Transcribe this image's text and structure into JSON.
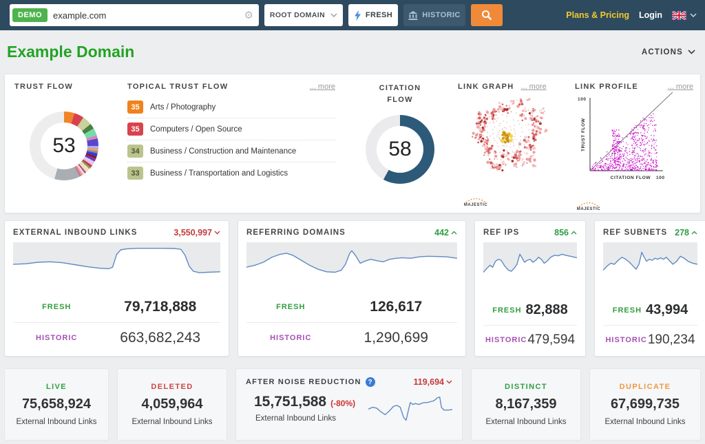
{
  "topbar": {
    "demo_badge": "DEMO",
    "search_value": "example.com",
    "scope_select": "ROOT DOMAIN",
    "fresh_button": "FRESH",
    "historic_button": "HISTORIC",
    "plans_pricing": "Plans & Pricing",
    "login": "Login"
  },
  "header": {
    "title": "Example Domain",
    "actions_label": "ACTIONS"
  },
  "overview": {
    "trust_flow": {
      "label": "TRUST FLOW",
      "value": "53"
    },
    "topical": {
      "label": "TOPICAL TRUST FLOW",
      "more_label": "... more",
      "items": [
        {
          "score": "35",
          "topic": "Arts / Photography",
          "color": "#f0821e",
          "text_color": "#ffffff"
        },
        {
          "score": "35",
          "topic": "Computers / Open Source",
          "color": "#d9434c",
          "text_color": "#ffffff"
        },
        {
          "score": "34",
          "topic": "Business / Construction and Maintenance",
          "color": "#bcc48e",
          "text_color": "#4f5430"
        },
        {
          "score": "33",
          "topic": "Business / Transportation and Logistics",
          "color": "#bcc48e",
          "text_color": "#4f5430"
        }
      ]
    },
    "citation_flow": {
      "label": "CITATION FLOW",
      "value": "58"
    },
    "link_graph": {
      "label": "LINK GRAPH",
      "more_label": "... more",
      "watermark": "MAJESTIC"
    },
    "link_profile": {
      "label": "LINK PROFILE",
      "more_label": "... more",
      "watermark": "MAJESTIC",
      "y_axis": "TRUST FLOW",
      "x_axis": "CITATION FLOW",
      "y_max": "100",
      "x_max": "100"
    }
  },
  "stat_cards": {
    "external_links": {
      "title": "EXTERNAL INBOUND LINKS",
      "delta": "3,550,997",
      "delta_dir": "down",
      "fresh_label": "FRESH",
      "fresh_value": "79,718,888",
      "historic_label": "HISTORIC",
      "historic_value": "663,682,243"
    },
    "referring_domains": {
      "title": "REFERRING DOMAINS",
      "delta": "442",
      "delta_dir": "up",
      "fresh_label": "FRESH",
      "fresh_value": "126,617",
      "historic_label": "HISTORIC",
      "historic_value": "1,290,699"
    },
    "ref_ips": {
      "title": "REF IPS",
      "delta": "856",
      "delta_dir": "up",
      "fresh_label": "FRESH",
      "fresh_value": "82,888",
      "historic_label": "HISTORIC",
      "historic_value": "479,594"
    },
    "ref_subnets": {
      "title": "REF SUBNETS",
      "delta": "278",
      "delta_dir": "up",
      "fresh_label": "FRESH",
      "fresh_value": "43,994",
      "historic_label": "HISTORIC",
      "historic_value": "190,234"
    }
  },
  "bottom_cards": {
    "live": {
      "label": "LIVE",
      "value": "75,658,924",
      "sub": "External Inbound Links"
    },
    "deleted": {
      "label": "DELETED",
      "value": "4,059,964",
      "sub": "External Inbound Links"
    },
    "noise": {
      "label": "AFTER NOISE REDUCTION",
      "delta": "119,694",
      "delta_dir": "down",
      "value": "15,751,588",
      "pct": "(-80%)",
      "sub": "External Inbound Links"
    },
    "distinct": {
      "label": "DISTINCT",
      "value": "8,167,359",
      "sub": "External Inbound Links"
    },
    "duplicate": {
      "label": "DUPLICATE",
      "value": "67,699,735",
      "sub": "External Inbound Links"
    }
  },
  "colors": {
    "topbar_bg": "#2e4a5f",
    "accent_orange": "#f08a38",
    "brand_green": "#23a323",
    "fresh_green": "#2f9e3f",
    "historic_purple": "#a64fb3",
    "delta_red": "#c43b3b",
    "delta_green": "#2e9e44",
    "citation_blue": "#2d5a78",
    "scatter_magenta": "#cc00cc",
    "spark_blue": "#6189c4",
    "spark_bg": "#e8eaec"
  },
  "chart_data": {
    "trust_flow_donut": {
      "type": "pie",
      "title": "Trust Flow",
      "value": 53,
      "segments": [
        [
          "#f08428",
          5
        ],
        [
          "#d84050",
          4.5
        ],
        [
          "#c8d29a",
          4.5
        ],
        [
          "#4e7e42",
          2.5
        ],
        [
          "#74dca8",
          3.5
        ],
        [
          "#e080b8",
          1.5
        ],
        [
          "#5848cc",
          3.5
        ],
        [
          "#b4aaf0",
          1.5
        ],
        [
          "#f0a050",
          1
        ],
        [
          "#909090",
          1
        ],
        [
          "#3838e8",
          1.5
        ],
        [
          "#8c1c1c",
          1
        ],
        [
          "#7838b0",
          1.5
        ],
        [
          "#d4d2f8",
          1
        ],
        [
          "#f2bcd8",
          1.2
        ],
        [
          "#c23468",
          1
        ],
        [
          "#8ea04a",
          1
        ],
        [
          "#ece8b4",
          1
        ],
        [
          "#f8d2d2",
          1.2
        ],
        [
          "#a05868",
          0.8
        ],
        [
          "#e8e8f0",
          0.8
        ],
        [
          "#f0a0a0",
          1
        ],
        [
          "#c87890",
          1
        ],
        [
          "#a9aeb3",
          12
        ],
        [
          "#ededee",
          45.5
        ]
      ]
    },
    "citation_flow_donut": {
      "type": "pie",
      "title": "Citation Flow",
      "value": 58,
      "segments": [
        [
          "#2d5a78",
          58
        ],
        [
          "#ebebed",
          42
        ]
      ]
    },
    "external_links_trend": {
      "type": "line",
      "x_range": [
        0,
        100
      ],
      "y_range": [
        0,
        40
      ],
      "points": [
        [
          0,
          22
        ],
        [
          6,
          21.5
        ],
        [
          12,
          20
        ],
        [
          18,
          19.5
        ],
        [
          24,
          20.5
        ],
        [
          30,
          22.5
        ],
        [
          36,
          24.5
        ],
        [
          42,
          26
        ],
        [
          46,
          26.5
        ],
        [
          48,
          25
        ],
        [
          50,
          12
        ],
        [
          52,
          7.5
        ],
        [
          55,
          6.5
        ],
        [
          60,
          6
        ],
        [
          66,
          6
        ],
        [
          72,
          6
        ],
        [
          78,
          6.2
        ],
        [
          81,
          7
        ],
        [
          83,
          13
        ],
        [
          85,
          24
        ],
        [
          87,
          29
        ],
        [
          90,
          30.5
        ],
        [
          94,
          30
        ],
        [
          100,
          29.5
        ]
      ]
    },
    "referring_domains_trend": {
      "type": "line",
      "x_range": [
        0,
        100
      ],
      "y_range": [
        0,
        40
      ],
      "points": [
        [
          0,
          25
        ],
        [
          4,
          23
        ],
        [
          8,
          20
        ],
        [
          12,
          15
        ],
        [
          16,
          12
        ],
        [
          19,
          11
        ],
        [
          22,
          13
        ],
        [
          26,
          18
        ],
        [
          30,
          23
        ],
        [
          34,
          27
        ],
        [
          38,
          29.5
        ],
        [
          42,
          30
        ],
        [
          45,
          28
        ],
        [
          47,
          22
        ],
        [
          49,
          11
        ],
        [
          50,
          8.5
        ],
        [
          52,
          14
        ],
        [
          54,
          21
        ],
        [
          56,
          19
        ],
        [
          59,
          17
        ],
        [
          62,
          18.5
        ],
        [
          65,
          19.5
        ],
        [
          68,
          17
        ],
        [
          71,
          16
        ],
        [
          74,
          15.5
        ],
        [
          78,
          16
        ],
        [
          82,
          14.5
        ],
        [
          86,
          14
        ],
        [
          90,
          14.2
        ],
        [
          95,
          14.5
        ],
        [
          100,
          16
        ]
      ]
    },
    "ref_ips_trend": {
      "type": "line",
      "x_range": [
        0,
        100
      ],
      "y_range": [
        0,
        40
      ],
      "points": [
        [
          0,
          30
        ],
        [
          4,
          26
        ],
        [
          7,
          23
        ],
        [
          10,
          25
        ],
        [
          13,
          19
        ],
        [
          16,
          17
        ],
        [
          19,
          18
        ],
        [
          23,
          24
        ],
        [
          27,
          28
        ],
        [
          30,
          29
        ],
        [
          33,
          26
        ],
        [
          36,
          22
        ],
        [
          39,
          12
        ],
        [
          41,
          15
        ],
        [
          44,
          20
        ],
        [
          47,
          18
        ],
        [
          50,
          17
        ],
        [
          53,
          20
        ],
        [
          56,
          18
        ],
        [
          59,
          15
        ],
        [
          62,
          17
        ],
        [
          65,
          21
        ],
        [
          68,
          19
        ],
        [
          72,
          15
        ],
        [
          76,
          13
        ],
        [
          80,
          13.5
        ],
        [
          84,
          12
        ],
        [
          88,
          13
        ],
        [
          93,
          14
        ],
        [
          100,
          15.5
        ]
      ]
    },
    "ref_subnets_trend": {
      "type": "line",
      "x_range": [
        0,
        100
      ],
      "y_range": [
        0,
        40
      ],
      "points": [
        [
          0,
          28
        ],
        [
          4,
          24
        ],
        [
          8,
          21
        ],
        [
          12,
          22
        ],
        [
          16,
          18
        ],
        [
          20,
          15
        ],
        [
          24,
          17
        ],
        [
          28,
          20
        ],
        [
          32,
          24
        ],
        [
          35,
          27
        ],
        [
          38,
          22
        ],
        [
          41,
          10
        ],
        [
          43,
          14
        ],
        [
          46,
          19
        ],
        [
          49,
          17
        ],
        [
          52,
          18
        ],
        [
          55,
          16
        ],
        [
          58,
          17
        ],
        [
          61,
          15.5
        ],
        [
          64,
          17
        ],
        [
          67,
          15
        ],
        [
          70,
          18
        ],
        [
          74,
          22
        ],
        [
          78,
          19
        ],
        [
          82,
          14
        ],
        [
          86,
          16
        ],
        [
          90,
          19
        ],
        [
          95,
          21
        ],
        [
          100,
          22
        ]
      ]
    },
    "noise_reduction_trend": {
      "type": "line",
      "x_range": [
        0,
        100
      ],
      "y_range": [
        0,
        40
      ],
      "points": [
        [
          0,
          18
        ],
        [
          5,
          16
        ],
        [
          10,
          17
        ],
        [
          15,
          21
        ],
        [
          20,
          24
        ],
        [
          25,
          20
        ],
        [
          30,
          15
        ],
        [
          34,
          14
        ],
        [
          38,
          16
        ],
        [
          42,
          27
        ],
        [
          45,
          30
        ],
        [
          48,
          18
        ],
        [
          50,
          11
        ],
        [
          53,
          13
        ],
        [
          56,
          12
        ],
        [
          60,
          13
        ],
        [
          63,
          12
        ],
        [
          66,
          11
        ],
        [
          70,
          11
        ],
        [
          74,
          10
        ],
        [
          78,
          9
        ],
        [
          82,
          6
        ],
        [
          85,
          5
        ],
        [
          87,
          16
        ],
        [
          90,
          19
        ],
        [
          95,
          19
        ],
        [
          100,
          18.5
        ]
      ]
    },
    "link_profile_scatter": {
      "type": "scatter",
      "xlabel": "CITATION FLOW",
      "ylabel": "TRUST FLOW",
      "xlim": [
        0,
        100
      ],
      "ylim": [
        0,
        100
      ],
      "note": "dense magenta wedge of backlinks below the CF=TF diagonal"
    }
  }
}
